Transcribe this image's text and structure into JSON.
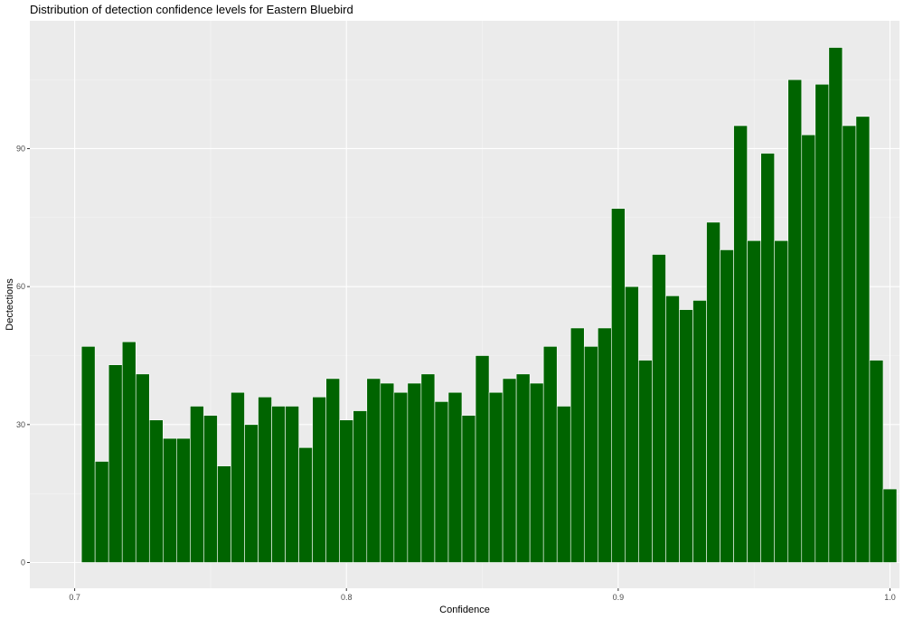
{
  "chart_data": {
    "type": "bar",
    "title": "Distribution of detection confidence levels for Eastern Bluebird",
    "xlabel": "Confidence",
    "ylabel": "Dectections",
    "xlim": [
      0.6835,
      1.0035
    ],
    "ylim": [
      -5.6,
      117.8
    ],
    "x_ticks": [
      0.7,
      0.8,
      0.9,
      1.0
    ],
    "x_tick_labels": [
      "0.7",
      "0.8",
      "0.9",
      "1.0"
    ],
    "y_ticks": [
      0,
      30,
      60,
      90
    ],
    "y_tick_labels": [
      "0",
      "30",
      "60",
      "90"
    ],
    "grid": true,
    "bin_width": 0.005,
    "bin_start": 0.7025,
    "values": [
      47,
      22,
      43,
      48,
      41,
      31,
      27,
      27,
      34,
      32,
      21,
      37,
      30,
      36,
      34,
      34,
      25,
      36,
      40,
      31,
      33,
      40,
      39,
      37,
      39,
      41,
      35,
      37,
      32,
      45,
      37,
      40,
      41,
      39,
      47,
      34,
      51,
      47,
      51,
      77,
      60,
      44,
      67,
      58,
      55,
      57,
      74,
      68,
      95,
      70,
      89,
      70,
      105,
      93,
      104,
      112,
      95,
      97,
      44,
      16
    ],
    "colors": {
      "bar_fill": "#006400",
      "bar_stroke": "#ffffff",
      "panel_background": "#ebebeb",
      "grid_major": "#ffffff",
      "grid_minor": "#f5f5f5",
      "text": "#000000",
      "tick_text": "#4d4d4d"
    }
  }
}
